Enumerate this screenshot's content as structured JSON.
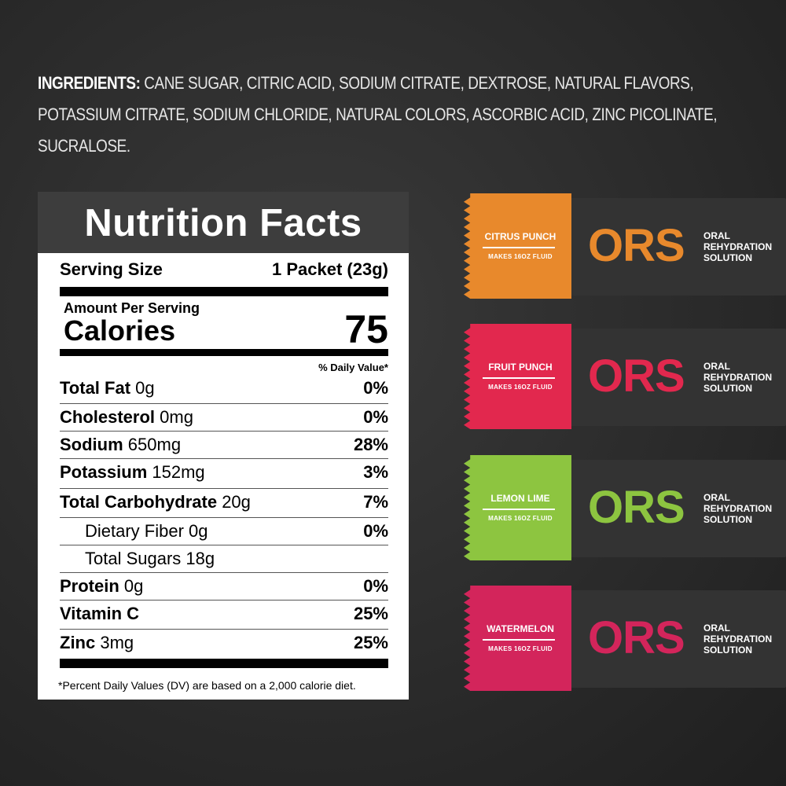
{
  "ingredients": {
    "label": "INGREDIENTS:",
    "text": " CANE SUGAR, CITRIC ACID, SODIUM CITRATE, DEXTROSE, NATURAL FLAVORS, POTASSIUM CITRATE, SODIUM CHLORIDE, NATURAL COLORS, ASCORBIC ACID, ZINC PICOLINATE, SUCRALOSE."
  },
  "nutrition": {
    "title": "Nutrition Facts",
    "serving_label": "Serving Size",
    "serving_value": "1 Packet (23g)",
    "amount_per_serving": "Amount Per Serving",
    "calories_label": "Calories",
    "calories_value": "75",
    "dv_header": "% Daily Value*",
    "rows": [
      {
        "name": "Total Fat",
        "amount": "0g",
        "dv": "0%"
      },
      {
        "name": "Cholesterol",
        "amount": "0mg",
        "dv": "0%"
      },
      {
        "name": "Sodium",
        "amount": "650mg",
        "dv": "28%"
      },
      {
        "name": "Potassium",
        "amount": "152mg",
        "dv": "3%"
      },
      {
        "name": "Total Carbohydrate",
        "amount": "20g",
        "dv": "7%"
      },
      {
        "name": "Dietary Fiber 0g",
        "amount": "",
        "dv": "0%"
      },
      {
        "name": "Total Sugars 18g",
        "amount": "",
        "dv": ""
      },
      {
        "name": "Protein",
        "amount": "0g",
        "dv": "0%"
      },
      {
        "name": "Vitamin C",
        "amount": "",
        "dv": "25%"
      },
      {
        "name": "Zinc",
        "amount": "3mg",
        "dv": "25%"
      }
    ],
    "footnote": "*Percent Daily Values (DV) are based on a 2,000 calorie diet."
  },
  "packets": [
    {
      "flavor": "CITRUS PUNCH",
      "makes": "MAKES 16OZ FLUID",
      "brand": "ORS",
      "desc1": "ORAL",
      "desc2": "REHYDRATION",
      "desc3": "SOLUTION",
      "color": "#e8892c"
    },
    {
      "flavor": "FRUIT PUNCH",
      "makes": "MAKES 16OZ FLUID",
      "brand": "ORS",
      "desc1": "ORAL",
      "desc2": "REHYDRATION",
      "desc3": "SOLUTION",
      "color": "#e2284e"
    },
    {
      "flavor": "LEMON LIME",
      "makes": "MAKES 16OZ FLUID",
      "brand": "ORS",
      "desc1": "ORAL",
      "desc2": "REHYDRATION",
      "desc3": "SOLUTION",
      "color": "#8dc540"
    },
    {
      "flavor": "WATERMELON",
      "makes": "MAKES 16OZ FLUID",
      "brand": "ORS",
      "desc1": "ORAL",
      "desc2": "REHYDRATION",
      "desc3": "SOLUTION",
      "color": "#d3255b"
    }
  ]
}
